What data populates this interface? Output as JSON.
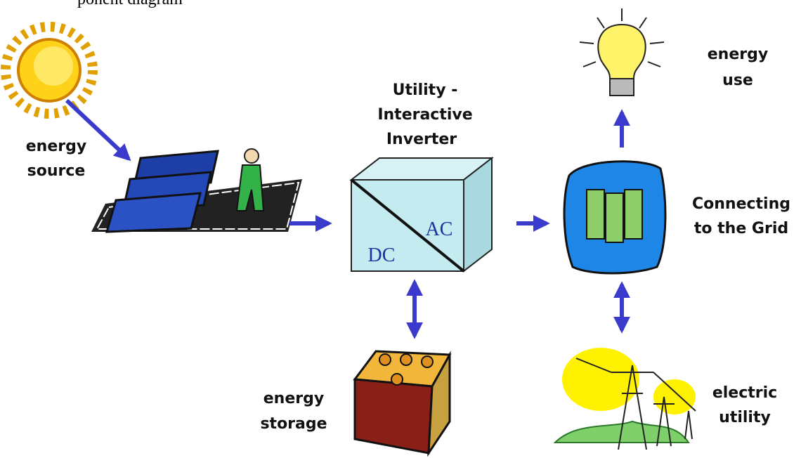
{
  "header": "ponent diagram",
  "energy_source": {
    "lines": [
      "energy",
      "source"
    ]
  },
  "inverter": {
    "lines": [
      "Utility -",
      "Interactive",
      "Inverter"
    ],
    "ac": "AC",
    "dc": "DC"
  },
  "energy_use": {
    "lines": [
      "energy",
      "use"
    ]
  },
  "grid": {
    "lines": [
      "Connecting",
      "to the Grid"
    ]
  },
  "energy_storage": {
    "lines": [
      "energy",
      "storage"
    ]
  },
  "electric_utility": {
    "lines": [
      "electric",
      "utility"
    ]
  }
}
